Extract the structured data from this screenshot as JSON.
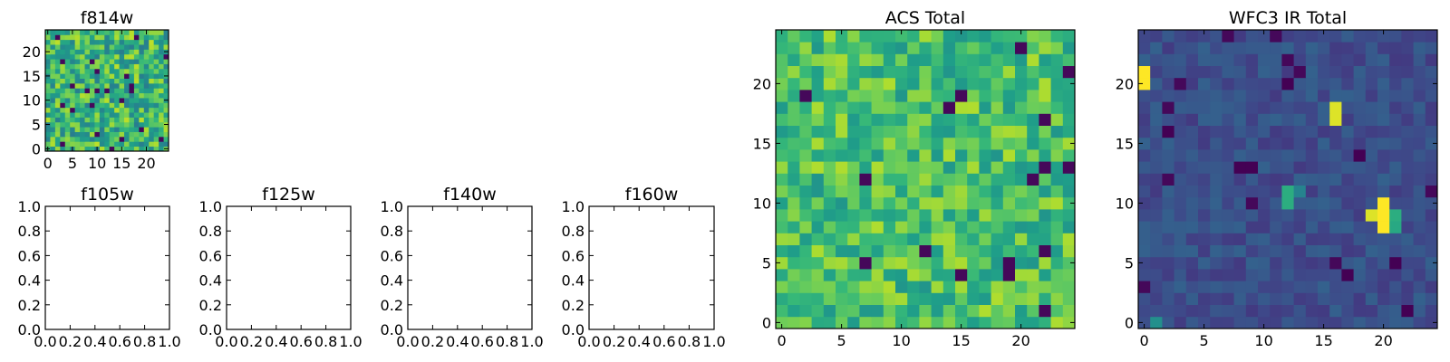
{
  "chart_data": [
    {
      "type": "heatmap",
      "title": "f814w",
      "grid_size": [
        25,
        25
      ],
      "xlim": [
        -0.5,
        24.5
      ],
      "ylim": [
        -0.5,
        24.5
      ],
      "xticks": [
        "0",
        "5",
        "10",
        "15",
        "20"
      ],
      "yticks": [
        "0",
        "5",
        "10",
        "15",
        "20"
      ],
      "colormap": "viridis",
      "pixel_seed": 814,
      "pixel_level": 0.66,
      "pixel_spread": 0.24
    },
    {
      "type": "empty",
      "title": "f105w",
      "xlim": [
        0.0,
        1.0
      ],
      "ylim": [
        0.0,
        1.0
      ],
      "xticks": [
        "0.0",
        "0.2",
        "0.4",
        "0.6",
        "0.8",
        "1.0"
      ],
      "yticks": [
        "0.0",
        "0.2",
        "0.4",
        "0.6",
        "0.8",
        "1.0"
      ]
    },
    {
      "type": "empty",
      "title": "f125w",
      "xlim": [
        0.0,
        1.0
      ],
      "ylim": [
        0.0,
        1.0
      ],
      "xticks": [
        "0.0",
        "0.2",
        "0.4",
        "0.6",
        "0.8",
        "1.0"
      ],
      "yticks": [
        "0.0",
        "0.2",
        "0.4",
        "0.6",
        "0.8",
        "1.0"
      ]
    },
    {
      "type": "empty",
      "title": "f140w",
      "xlim": [
        0.0,
        1.0
      ],
      "ylim": [
        0.0,
        1.0
      ],
      "xticks": [
        "0.0",
        "0.2",
        "0.4",
        "0.6",
        "0.8",
        "1.0"
      ],
      "yticks": [
        "0.0",
        "0.2",
        "0.4",
        "0.6",
        "0.8",
        "1.0"
      ]
    },
    {
      "type": "empty",
      "title": "f160w",
      "xlim": [
        0.0,
        1.0
      ],
      "ylim": [
        0.0,
        1.0
      ],
      "xticks": [
        "0.0",
        "0.2",
        "0.4",
        "0.6",
        "0.8",
        "1.0"
      ],
      "yticks": [
        "0.0",
        "0.2",
        "0.4",
        "0.6",
        "0.8",
        "1.0"
      ]
    },
    {
      "type": "heatmap",
      "title": "ACS Total",
      "grid_size": [
        25,
        25
      ],
      "xlim": [
        -0.5,
        24.5
      ],
      "ylim": [
        -0.5,
        24.5
      ],
      "xticks": [
        "0",
        "5",
        "10",
        "15",
        "20"
      ],
      "yticks": [
        "0",
        "5",
        "10",
        "15",
        "20"
      ],
      "colormap": "viridis",
      "pixel_seed": 1234,
      "pixel_level": 0.7,
      "pixel_spread": 0.18
    },
    {
      "type": "heatmap",
      "title": "WFC3 IR Total",
      "grid_size": [
        25,
        25
      ],
      "xlim": [
        -0.5,
        24.5
      ],
      "ylim": [
        -0.5,
        24.5
      ],
      "xticks": [
        "0",
        "5",
        "10",
        "15",
        "20"
      ],
      "yticks": [
        "0",
        "5",
        "10",
        "15",
        "20"
      ],
      "colormap": "viridis",
      "pixel_seed": 3303,
      "pixel_level": 0.24,
      "pixel_spread": 0.07,
      "hot_cells": [
        {
          "x": 0,
          "y": 21,
          "value": 1.0
        },
        {
          "x": 0,
          "y": 20,
          "value": 1.0
        },
        {
          "x": 16,
          "y": 18,
          "value": 0.95
        },
        {
          "x": 16,
          "y": 17,
          "value": 0.95
        },
        {
          "x": 12,
          "y": 11,
          "value": 0.62
        },
        {
          "x": 12,
          "y": 10,
          "value": 0.62
        },
        {
          "x": 13,
          "y": 11,
          "value": 0.45
        },
        {
          "x": 20,
          "y": 10,
          "value": 1.0
        },
        {
          "x": 20,
          "y": 9,
          "value": 1.0
        },
        {
          "x": 19,
          "y": 9,
          "value": 0.95
        },
        {
          "x": 21,
          "y": 9,
          "value": 0.62
        },
        {
          "x": 20,
          "y": 8,
          "value": 1.0
        },
        {
          "x": 21,
          "y": 8,
          "value": 0.6
        },
        {
          "x": 1,
          "y": 0,
          "value": 0.5
        },
        {
          "x": 8,
          "y": 13,
          "value": 0.0
        },
        {
          "x": 9,
          "y": 13,
          "value": 0.0
        },
        {
          "x": 12,
          "y": 20,
          "value": 0.0
        },
        {
          "x": 2,
          "y": 16,
          "value": 0.0
        },
        {
          "x": 21,
          "y": 5,
          "value": 0.0
        },
        {
          "x": 17,
          "y": 4,
          "value": 0.0
        },
        {
          "x": 22,
          "y": 1,
          "value": 0.0
        },
        {
          "x": 18,
          "y": 14,
          "value": 0.0
        }
      ]
    }
  ]
}
